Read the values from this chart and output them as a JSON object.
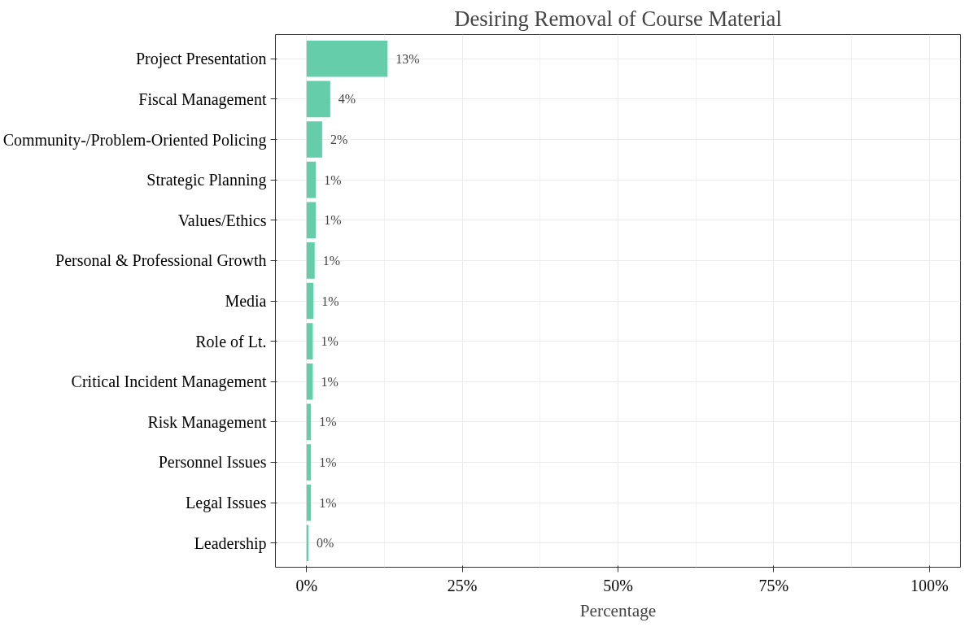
{
  "chart_data": {
    "type": "bar",
    "orientation": "horizontal",
    "title": "Desiring Removal of Course Material",
    "xlabel": "Percentage",
    "categories": [
      "Project Presentation",
      "Fiscal Management",
      "Community-/Problem-Oriented Policing",
      "Strategic Planning",
      "Values/Ethics",
      "Personal & Professional Growth",
      "Media",
      "Role of Lt.",
      "Critical Incident Management",
      "Risk Management",
      "Personnel Issues",
      "Legal Issues",
      "Leadership"
    ],
    "values": [
      13.0,
      3.8,
      2.5,
      1.5,
      1.5,
      1.3,
      1.1,
      1.0,
      1.0,
      0.7,
      0.7,
      0.7,
      0.3
    ],
    "value_labels": [
      "13%",
      "4%",
      "2%",
      "1%",
      "1%",
      "1%",
      "1%",
      "1%",
      "1%",
      "1%",
      "1%",
      "1%",
      "0%"
    ],
    "color": "#66cdaa",
    "xlim": [
      -5,
      105
    ],
    "xticks": [
      {
        "value": 0,
        "label": "0%"
      },
      {
        "value": 25,
        "label": "25%"
      },
      {
        "value": 50,
        "label": "50%"
      },
      {
        "value": 75,
        "label": "75%"
      },
      {
        "value": 100,
        "label": "100%"
      }
    ],
    "grid": true
  }
}
